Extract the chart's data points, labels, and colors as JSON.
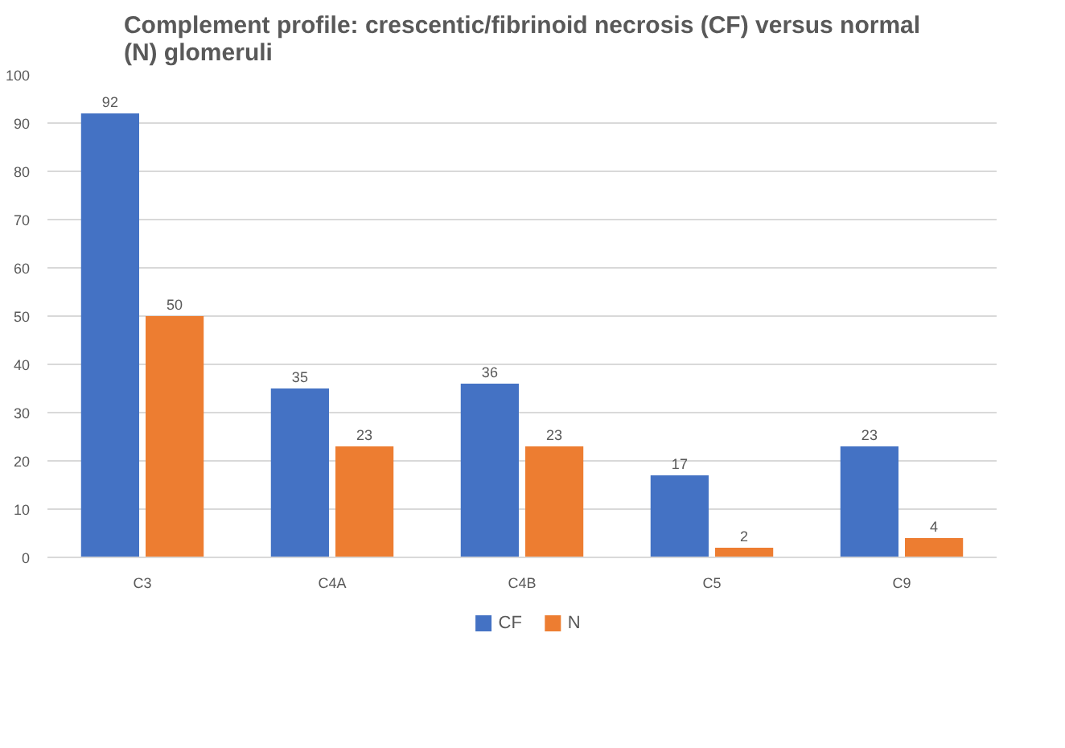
{
  "chart_data": {
    "type": "bar",
    "title": "Complement profile: crescentic/fibrinoid necrosis (CF) versus normal (N) glomeruli",
    "categories": [
      "C3",
      "C4A",
      "C4B",
      "C5",
      "C9"
    ],
    "series": [
      {
        "name": "CF",
        "color": "#4472c4",
        "values": [
          92,
          35,
          36,
          17,
          23
        ]
      },
      {
        "name": "N",
        "color": "#ed7d31",
        "values": [
          50,
          23,
          23,
          2,
          4
        ]
      }
    ],
    "ylim": [
      0,
      100
    ],
    "yticks": [
      0,
      10,
      20,
      30,
      40,
      50,
      60,
      70,
      80,
      90,
      100
    ],
    "grid": "y",
    "legend": "bottom",
    "data_labels": true
  }
}
